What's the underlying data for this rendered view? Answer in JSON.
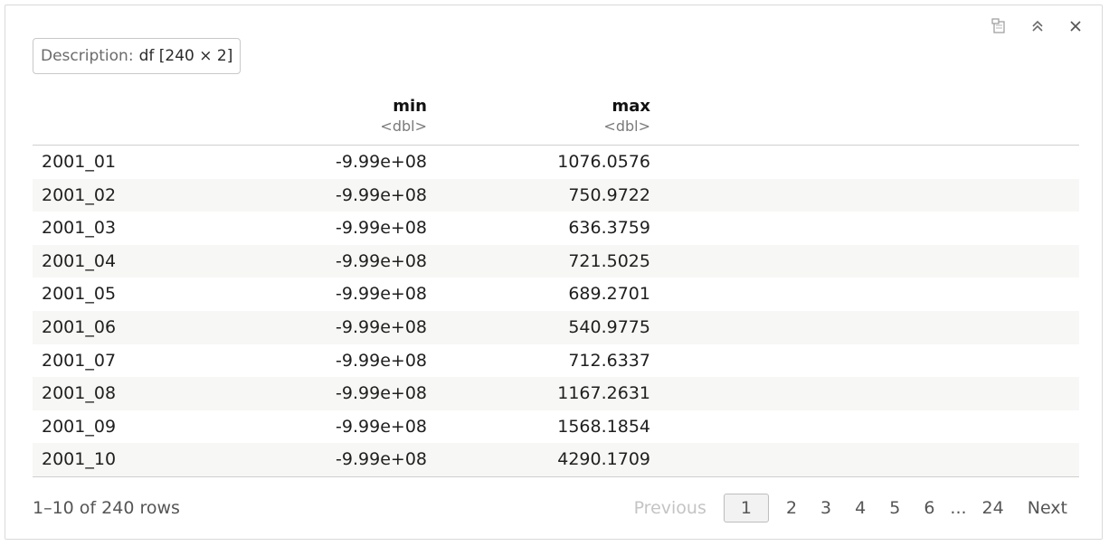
{
  "toolbar": {
    "icons": [
      "export-icon",
      "collapse-icon",
      "close-icon"
    ]
  },
  "description": {
    "label": "Description:",
    "value": "df [240 × 2]"
  },
  "columns": [
    {
      "name": "min",
      "type": "<dbl>"
    },
    {
      "name": "max",
      "type": "<dbl>"
    }
  ],
  "rows": [
    {
      "name": "2001_01",
      "min": "-9.99e+08",
      "max": "1076.0576"
    },
    {
      "name": "2001_02",
      "min": "-9.99e+08",
      "max": "750.9722"
    },
    {
      "name": "2001_03",
      "min": "-9.99e+08",
      "max": "636.3759"
    },
    {
      "name": "2001_04",
      "min": "-9.99e+08",
      "max": "721.5025"
    },
    {
      "name": "2001_05",
      "min": "-9.99e+08",
      "max": "689.2701"
    },
    {
      "name": "2001_06",
      "min": "-9.99e+08",
      "max": "540.9775"
    },
    {
      "name": "2001_07",
      "min": "-9.99e+08",
      "max": "712.6337"
    },
    {
      "name": "2001_08",
      "min": "-9.99e+08",
      "max": "1167.2631"
    },
    {
      "name": "2001_09",
      "min": "-9.99e+08",
      "max": "1568.1854"
    },
    {
      "name": "2001_10",
      "min": "-9.99e+08",
      "max": "4290.1709"
    }
  ],
  "footer": {
    "rows_info": "1–10 of 240 rows",
    "previous": "Previous",
    "pages": [
      "1",
      "2",
      "3",
      "4",
      "5",
      "6"
    ],
    "ellipsis": "...",
    "last_page": "24",
    "next": "Next",
    "current_page": "1"
  }
}
